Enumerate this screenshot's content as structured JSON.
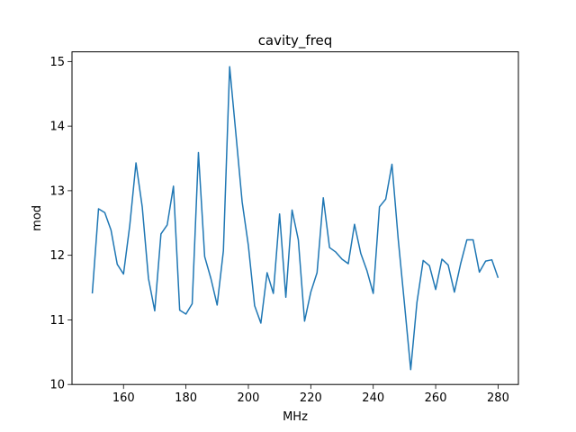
{
  "chart_data": {
    "type": "line",
    "title": "cavity_freq",
    "xlabel": "MHz",
    "ylabel": "mod",
    "xlim": [
      143.5,
      286.5
    ],
    "ylim": [
      10.0,
      15.15
    ],
    "xticks": [
      160,
      180,
      200,
      220,
      240,
      260,
      280
    ],
    "yticks": [
      10,
      11,
      12,
      13,
      14,
      15
    ],
    "grid": false,
    "line_color": "#1f77b4",
    "series": [
      {
        "x": [
          150,
          152,
          154,
          156,
          158,
          160,
          162,
          164,
          166,
          168,
          170,
          172,
          174,
          176,
          178,
          180,
          182,
          184,
          186,
          188,
          190,
          192,
          194,
          196,
          198,
          200,
          202,
          204,
          206,
          208,
          210,
          212,
          214,
          216,
          218,
          220,
          222,
          224,
          226,
          228,
          230,
          232,
          234,
          236,
          238,
          240,
          242,
          244,
          246,
          248,
          250,
          252,
          254,
          256,
          258,
          260,
          262,
          264,
          266,
          268,
          270,
          272,
          274,
          276,
          278,
          280
        ],
        "y": [
          11.41,
          12.72,
          12.66,
          12.39,
          11.86,
          11.71,
          12.46,
          13.43,
          12.75,
          11.64,
          11.14,
          12.33,
          12.47,
          13.07,
          11.15,
          11.09,
          11.25,
          13.59,
          11.98,
          11.64,
          11.23,
          12.07,
          14.92,
          13.88,
          12.83,
          12.15,
          11.22,
          10.95,
          11.73,
          11.41,
          12.64,
          11.35,
          12.7,
          12.24,
          10.98,
          11.43,
          11.73,
          12.89,
          12.12,
          12.05,
          11.94,
          11.87,
          12.48,
          12.03,
          11.76,
          11.41,
          12.75,
          12.87,
          13.41,
          12.25,
          11.25,
          10.23,
          11.27,
          11.92,
          11.84,
          11.47,
          11.94,
          11.85,
          11.43,
          11.87,
          12.24,
          12.24,
          11.74,
          11.91,
          11.93,
          11.65
        ]
      }
    ]
  }
}
